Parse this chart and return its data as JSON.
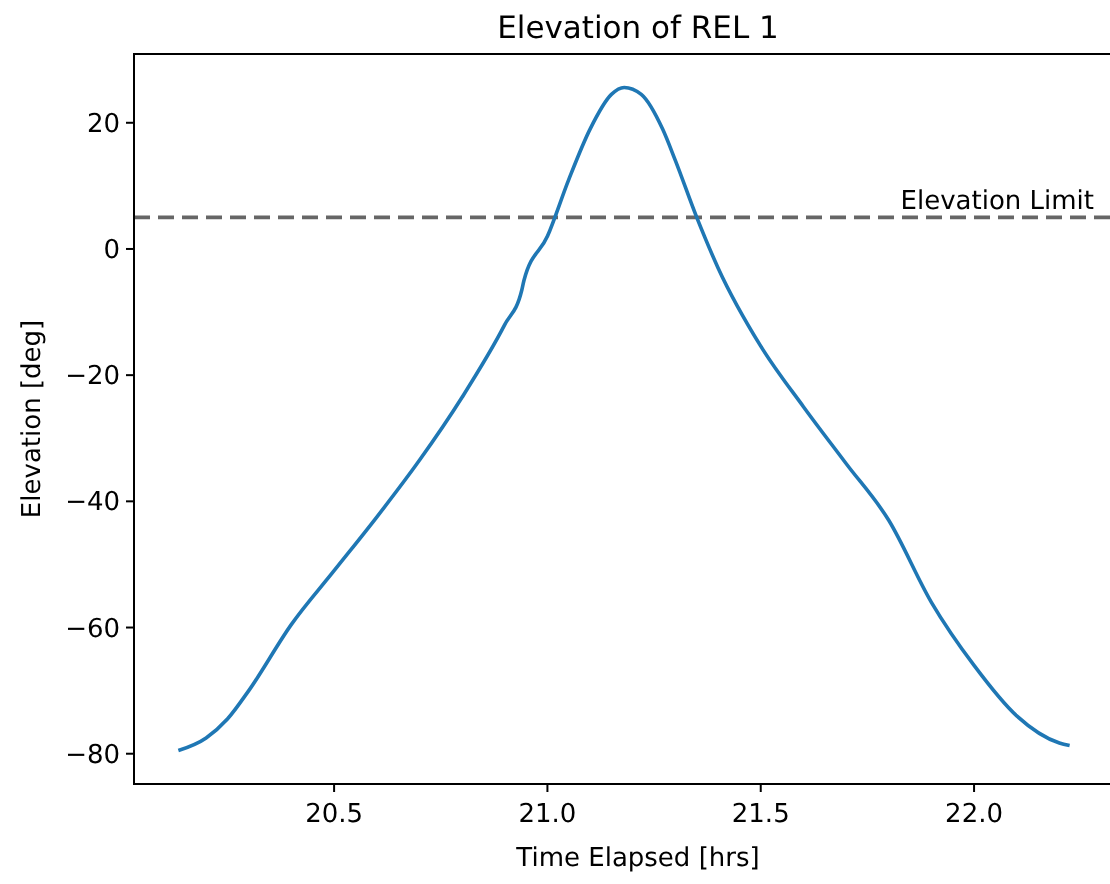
{
  "chart_data": {
    "type": "line",
    "title": "Elevation of REL 1",
    "xlabel": "Time Elapsed [hrs]",
    "ylabel": "Elevation [deg]",
    "xlim": [
      20.031,
      22.328
    ],
    "xticks": [
      {
        "value": 20.5,
        "label": "20.5"
      },
      {
        "value": 21,
        "label": "21.0"
      },
      {
        "value": 21.5,
        "label": "21.5"
      },
      {
        "value": 22,
        "label": "22.0"
      }
    ],
    "ylim": [
      -84.8,
      30.9
    ],
    "yticks": [
      {
        "value": -80,
        "label": "−80"
      },
      {
        "value": -60,
        "label": "−60"
      },
      {
        "value": -40,
        "label": "−40"
      },
      {
        "value": -20,
        "label": "−20"
      },
      0,
      20
    ],
    "grid": false,
    "ref_lines": [
      {
        "axis": "y",
        "value": 5,
        "label": "Elevation Limit",
        "color": "#666666",
        "line_style": "dashed"
      }
    ],
    "series": [
      {
        "color": "#1f77b4",
        "x": [
          20.135,
          20.2,
          20.25,
          20.3,
          20.4,
          20.5,
          20.6,
          20.7,
          20.8,
          20.9,
          20.94,
          20.945,
          21.0,
          21.05,
          21.1,
          21.15,
          21.18,
          21.22,
          21.27,
          21.3,
          21.35,
          21.4,
          21.5,
          21.6,
          21.7,
          21.8,
          21.9,
          22.0,
          22.1,
          22.2,
          22.224
        ],
        "values": [
          -79.5,
          -77.5,
          -74.5,
          -70,
          -59.5,
          -51,
          -42.5,
          -33.5,
          -23.5,
          -12,
          -6.5,
          -5,
          2,
          11,
          19,
          24.5,
          25.6,
          24.5,
          19,
          14,
          5,
          -3,
          -15.4,
          -25,
          -34,
          -43,
          -56,
          -66,
          -74,
          -78.3,
          -78.7
        ]
      }
    ]
  }
}
